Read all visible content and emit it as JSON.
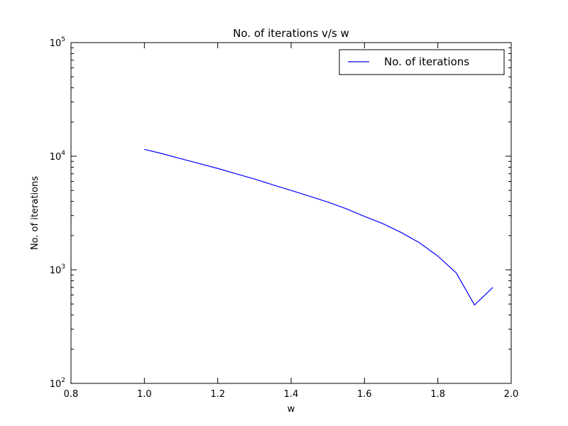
{
  "chart_data": {
    "type": "line",
    "title": "No. of iterations v/s w",
    "xlabel": "w",
    "ylabel": "No. of iterations",
    "xlim": [
      0.8,
      2.0
    ],
    "ylim": [
      100,
      100000
    ],
    "yscale": "log",
    "xticks": [
      "0.8",
      "1.0",
      "1.2",
      "1.4",
      "1.6",
      "1.8",
      "2.0"
    ],
    "yticks": [
      {
        "base": "10",
        "exp": "2"
      },
      {
        "base": "10",
        "exp": "3"
      },
      {
        "base": "10",
        "exp": "4"
      },
      {
        "base": "10",
        "exp": "5"
      }
    ],
    "grid": false,
    "legend": {
      "position": "top-right"
    },
    "series": [
      {
        "name": "No. of iterations",
        "color": "#0000ff",
        "x": [
          1.0,
          1.05,
          1.1,
          1.15,
          1.2,
          1.25,
          1.3,
          1.35,
          1.4,
          1.45,
          1.5,
          1.55,
          1.6,
          1.65,
          1.7,
          1.75,
          1.8,
          1.85,
          1.9,
          1.95
        ],
        "y": [
          11500,
          10500,
          9500,
          8600,
          7800,
          7000,
          6300,
          5600,
          5000,
          4450,
          3950,
          3450,
          2950,
          2550,
          2130,
          1730,
          1320,
          940,
          490,
          700
        ]
      }
    ]
  }
}
